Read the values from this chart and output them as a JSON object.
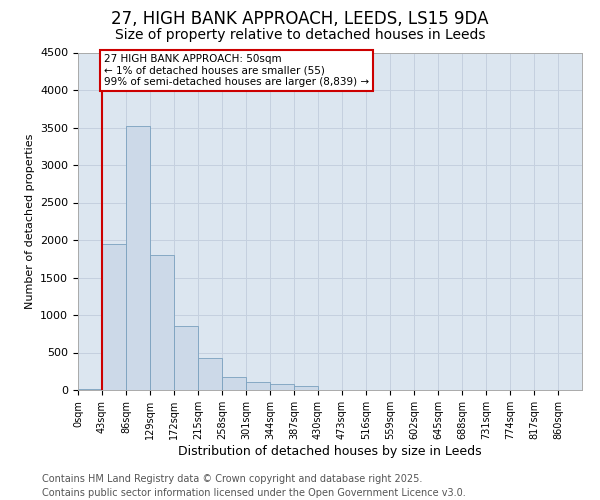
{
  "title": "27, HIGH BANK APPROACH, LEEDS, LS15 9DA",
  "subtitle": "Size of property relative to detached houses in Leeds",
  "xlabel": "Distribution of detached houses by size in Leeds",
  "ylabel": "Number of detached properties",
  "footnote": "Contains HM Land Registry data © Crown copyright and database right 2025.\nContains public sector information licensed under the Open Government Licence v3.0.",
  "categories": [
    "0sqm",
    "43sqm",
    "86sqm",
    "129sqm",
    "172sqm",
    "215sqm",
    "258sqm",
    "301sqm",
    "344sqm",
    "387sqm",
    "430sqm",
    "473sqm",
    "516sqm",
    "559sqm",
    "602sqm",
    "645sqm",
    "688sqm",
    "731sqm",
    "774sqm",
    "817sqm",
    "860sqm"
  ],
  "bar_values": [
    20,
    1950,
    3520,
    1800,
    860,
    430,
    170,
    105,
    80,
    55,
    0,
    0,
    0,
    0,
    0,
    0,
    0,
    0,
    0,
    0,
    0
  ],
  "bar_color": "#ccd9e8",
  "bar_edge_color": "#7aa0be",
  "ylim": [
    0,
    4500
  ],
  "yticks": [
    0,
    500,
    1000,
    1500,
    2000,
    2500,
    3000,
    3500,
    4000,
    4500
  ],
  "red_line_x": 1,
  "annotation_line1": "27 HIGH BANK APPROACH: 50sqm",
  "annotation_line2": "← 1% of detached houses are smaller (55)",
  "annotation_line3": "99% of semi-detached houses are larger (8,839) →",
  "annotation_box_color": "#ffffff",
  "annotation_box_edge": "#cc0000",
  "red_line_color": "#cc0000",
  "grid_color": "#c5d0df",
  "bg_color": "#dce6f0",
  "title_fontsize": 12,
  "subtitle_fontsize": 10,
  "footnote_fontsize": 7
}
